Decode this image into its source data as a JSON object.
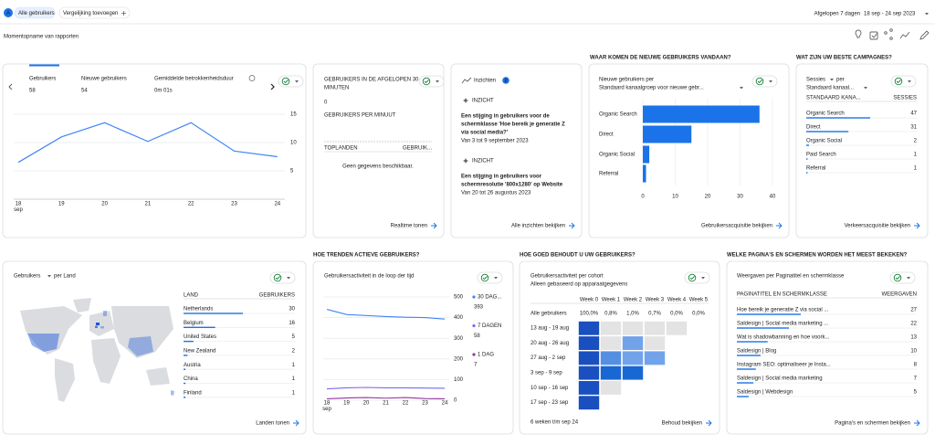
{
  "header": {
    "avatar": "A",
    "audience": "Alle gebruikers",
    "compare": "Vergelijking toevoegen",
    "date_caption": "Afgelopen 7 dagen",
    "date_range": "18 sep - 24 sep 2023",
    "title": "Momentopname van rapporten"
  },
  "overview": {
    "tabs": [
      {
        "label": "Gebruikers",
        "value": 58
      },
      {
        "label": "Nieuwe gebruikers",
        "value": 54
      },
      {
        "label": "Gemiddelde betrokkenheidsduur",
        "value": "0m 01s"
      }
    ],
    "chart_data": {
      "type": "line",
      "categories": [
        "18",
        "19",
        "20",
        "21",
        "22",
        "23",
        "24"
      ],
      "month_label": "sep",
      "values": [
        6.5,
        11,
        13.5,
        10.2,
        13.5,
        8.5,
        7.5
      ],
      "color": "#4285f4",
      "ylim": [
        0,
        15
      ],
      "yticks": [
        5,
        10,
        15
      ],
      "grid": true
    }
  },
  "realtime": {
    "title_lines": [
      "GEBRUIKERS IN DE AFGELOPEN 30",
      "MINUTEN"
    ],
    "value": 0,
    "subtitle": "GEBRUIKERS PER MINUUT",
    "headers": [
      "TOPLANDEN",
      "GEBRUIK..."
    ],
    "empty": "Geen gegevens beschikbaar.",
    "link": "Realtime tonen"
  },
  "insights": {
    "title": "Inzichten",
    "count": 8,
    "items": [
      {
        "tag": "INZICHT",
        "lines": [
          "Een stijging in gebruikers voor de",
          "schermklasse 'Hoe bereik je generatie Z",
          "via social media?'"
        ],
        "date": "Van 3 tot 9 september 2023"
      },
      {
        "tag": "INZICHT",
        "lines": [
          "Een stijging in gebruikers voor",
          "schermresolutie '800x1280' op Website"
        ],
        "date": "Van 20 tot 26 augustus 2023"
      }
    ],
    "link": "Alle inzichten bekijken"
  },
  "acquisition": {
    "section": "WAAR KOMEN DE NIEUWE GEBRUIKERS VANDAAN?",
    "title_lines": [
      "Nieuwe gebruikers per",
      "Standaard kanaalgroep voor nieuwe gebr..."
    ],
    "chart_data": {
      "type": "bar",
      "orientation": "horizontal",
      "categories": [
        "Organic Search",
        "Direct",
        "Organic Social",
        "Referral"
      ],
      "values": [
        36,
        15,
        2,
        1
      ],
      "color": "#1a73e8",
      "xlim": [
        0,
        40
      ],
      "xticks": [
        0,
        10,
        20,
        30,
        40
      ],
      "grid": true
    },
    "link": "Gebruikersacquisitie bekijken"
  },
  "campaigns": {
    "section": "WAT ZIJN UW BESTE CAMPAGNES?",
    "metric": "Sessies",
    "per": "per",
    "dimension": "Standaard kanaal...",
    "headers": [
      "STANDAARD KANA...",
      "SESSIES"
    ],
    "rows": [
      {
        "name": "Organic Search",
        "value": 47
      },
      {
        "name": "Direct",
        "value": 31
      },
      {
        "name": "Organic Social",
        "value": 2
      },
      {
        "name": "Paid Search",
        "value": 1
      },
      {
        "name": "Referral",
        "value": 1
      }
    ],
    "link": "Verkeersacquisitie bekijken"
  },
  "countries": {
    "metric": "Gebruikers",
    "dimension": "per Land",
    "headers": [
      "LAND",
      "GEBRUIKERS"
    ],
    "rows": [
      {
        "name": "Netherlands",
        "value": 30
      },
      {
        "name": "Belgium",
        "value": 16
      },
      {
        "name": "United States",
        "value": 5
      },
      {
        "name": "New Zealand",
        "value": 2
      },
      {
        "name": "Austria",
        "value": 1
      },
      {
        "name": "China",
        "value": 1
      },
      {
        "name": "Finland",
        "value": 1
      }
    ],
    "link": "Landen tonen"
  },
  "activity": {
    "section": "HOE TRENDEN ACTIEVE GEBRUIKERS?",
    "title": "Gebruikersactiviteit in de loop der tijd",
    "chart_data": {
      "type": "line",
      "categories": [
        "18",
        "19",
        "20",
        "21",
        "22",
        "23",
        "24"
      ],
      "month_label": "sep",
      "series": [
        {
          "name": "30 DAG...",
          "color": "#4285f4",
          "values": [
            440,
            415,
            410,
            405,
            402,
            400,
            393
          ]
        },
        {
          "name": "7 DAGEN",
          "color": "#7b68ee",
          "values": [
            55,
            60,
            62,
            60,
            60,
            59,
            58
          ]
        },
        {
          "name": "1 DAG",
          "color": "#9334a0",
          "values": [
            7,
            11,
            13,
            10,
            13,
            8,
            7
          ]
        }
      ],
      "ylim": [
        0,
        500
      ],
      "yticks": [
        0,
        100,
        200,
        300,
        400,
        500
      ],
      "grid": true,
      "legend": "right"
    }
  },
  "retention": {
    "section": "HOE GOED BEHOUDT U UW GEBRUIKERS?",
    "title": "Gebruikersactiviteit per cohort",
    "subtitle": "Alleen gebaseerd op apparaatgegevens",
    "weeks": [
      "Week 0",
      "Week 1",
      "Week 2",
      "Week 3",
      "Week 4",
      "Week 5"
    ],
    "total_label": "Alle gebruikers",
    "total_values": [
      100,
      0.8,
      1,
      0.7,
      0,
      0
    ],
    "total_value_labels": [
      "100,0%",
      "0,8%",
      "1,0%",
      "0,7%",
      "0,0%",
      "0,0%"
    ],
    "cohorts": [
      {
        "name": "13 aug - 19 aug",
        "values": [
          100,
          0,
          0,
          0,
          0
        ]
      },
      {
        "name": "20 aug - 26 aug",
        "values": [
          100,
          0,
          2,
          0
        ]
      },
      {
        "name": "27 aug - 2 sep",
        "values": [
          100,
          3,
          2,
          2
        ]
      },
      {
        "name": "3 sep - 9 sep",
        "values": [
          100,
          5,
          5
        ]
      },
      {
        "name": "10 sep - 16 sep",
        "values": [
          100,
          0
        ]
      },
      {
        "name": "17 sep - 23 sep",
        "values": [
          100
        ]
      }
    ],
    "footer": "6 weken t/m sep 24",
    "link": "Behoud bekijken"
  },
  "pages": {
    "section": "WELKE PAGINA'S EN SCHERMEN WORDEN HET MEEST BEKEKEN?",
    "title": "Weergaven per Paginatitel en schermklasse",
    "headers": [
      "PAGINATITEL EN SCHERMKLASSE",
      "WEERGAVEN"
    ],
    "rows": [
      {
        "name": "Hoe bereik je generatie Z via social ...",
        "value": 27
      },
      {
        "name": "Saldesign | Social media marketing ...",
        "value": 22
      },
      {
        "name": "Wat is shadowbanning en hoe voork...",
        "value": 13
      },
      {
        "name": "Saldesign | Blog",
        "value": 10
      },
      {
        "name": "Instagram SEO: optimaliseer je Insta...",
        "value": 8
      },
      {
        "name": "Saldesign | Social media marketing",
        "value": 7
      },
      {
        "name": "Saldesign | Webdesign",
        "value": 5
      }
    ],
    "link": "Pagina's en schermen bekijken"
  }
}
